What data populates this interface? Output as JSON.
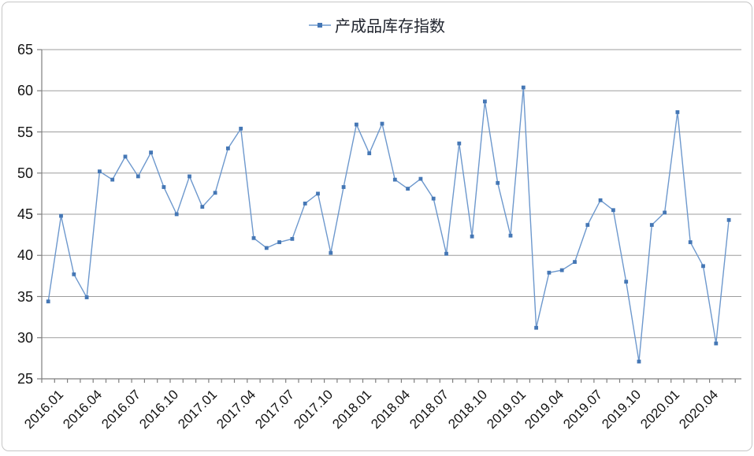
{
  "legend": {
    "label": "产成品库存指数"
  },
  "colors": {
    "line": "#6d98cd",
    "marker": "#4577b5",
    "gridline": "#9d9d9d",
    "axis": "#7f7f7f",
    "tick": "#7f7f7f",
    "label_text": "#141414",
    "legend_text": "#20242e",
    "frame_border": "#c6c6c6"
  },
  "chart_data": {
    "type": "line",
    "title": "产成品库存指数",
    "legend_position": "top-center",
    "grid": true,
    "xlabel": "",
    "ylabel": "",
    "ylim": [
      25,
      65
    ],
    "ytick_step": 5,
    "yticks": [
      25,
      30,
      35,
      40,
      45,
      50,
      55,
      60,
      65
    ],
    "x_label_every": 3,
    "categories": [
      "2016.01",
      "2016.02",
      "2016.03",
      "2016.04",
      "2016.05",
      "2016.06",
      "2016.07",
      "2016.08",
      "2016.09",
      "2016.10",
      "2016.11",
      "2016.12",
      "2017.01",
      "2017.02",
      "2017.03",
      "2017.04",
      "2017.05",
      "2017.06",
      "2017.07",
      "2017.08",
      "2017.09",
      "2017.10",
      "2017.11",
      "2017.12",
      "2018.01",
      "2018.02",
      "2018.03",
      "2018.04",
      "2018.05",
      "2018.06",
      "2018.07",
      "2018.08",
      "2018.09",
      "2018.10",
      "2018.11",
      "2018.12",
      "2019.01",
      "2019.02",
      "2019.03",
      "2019.04",
      "2019.05",
      "2019.06",
      "2019.07",
      "2019.08",
      "2019.09",
      "2019.10",
      "2019.11",
      "2019.12",
      "2020.01",
      "2020.02",
      "2020.03",
      "2020.04",
      "2020.05",
      "2020.06"
    ],
    "series": [
      {
        "name": "产成品库存指数",
        "values": [
          34.4,
          44.8,
          37.7,
          34.9,
          50.2,
          49.2,
          52.0,
          49.6,
          52.5,
          48.3,
          45.0,
          49.6,
          45.9,
          47.6,
          53.0,
          55.4,
          42.1,
          40.9,
          41.6,
          42.0,
          46.3,
          47.5,
          40.3,
          48.3,
          55.9,
          52.4,
          56.0,
          49.2,
          48.1,
          49.3,
          46.9,
          40.2,
          53.6,
          42.3,
          58.7,
          48.8,
          42.4,
          60.4,
          31.2,
          37.9,
          38.2,
          39.2,
          43.7,
          46.7,
          45.5,
          36.8,
          27.1,
          43.7,
          45.2,
          57.4,
          41.6,
          38.7,
          29.3,
          44.3
        ]
      }
    ]
  }
}
